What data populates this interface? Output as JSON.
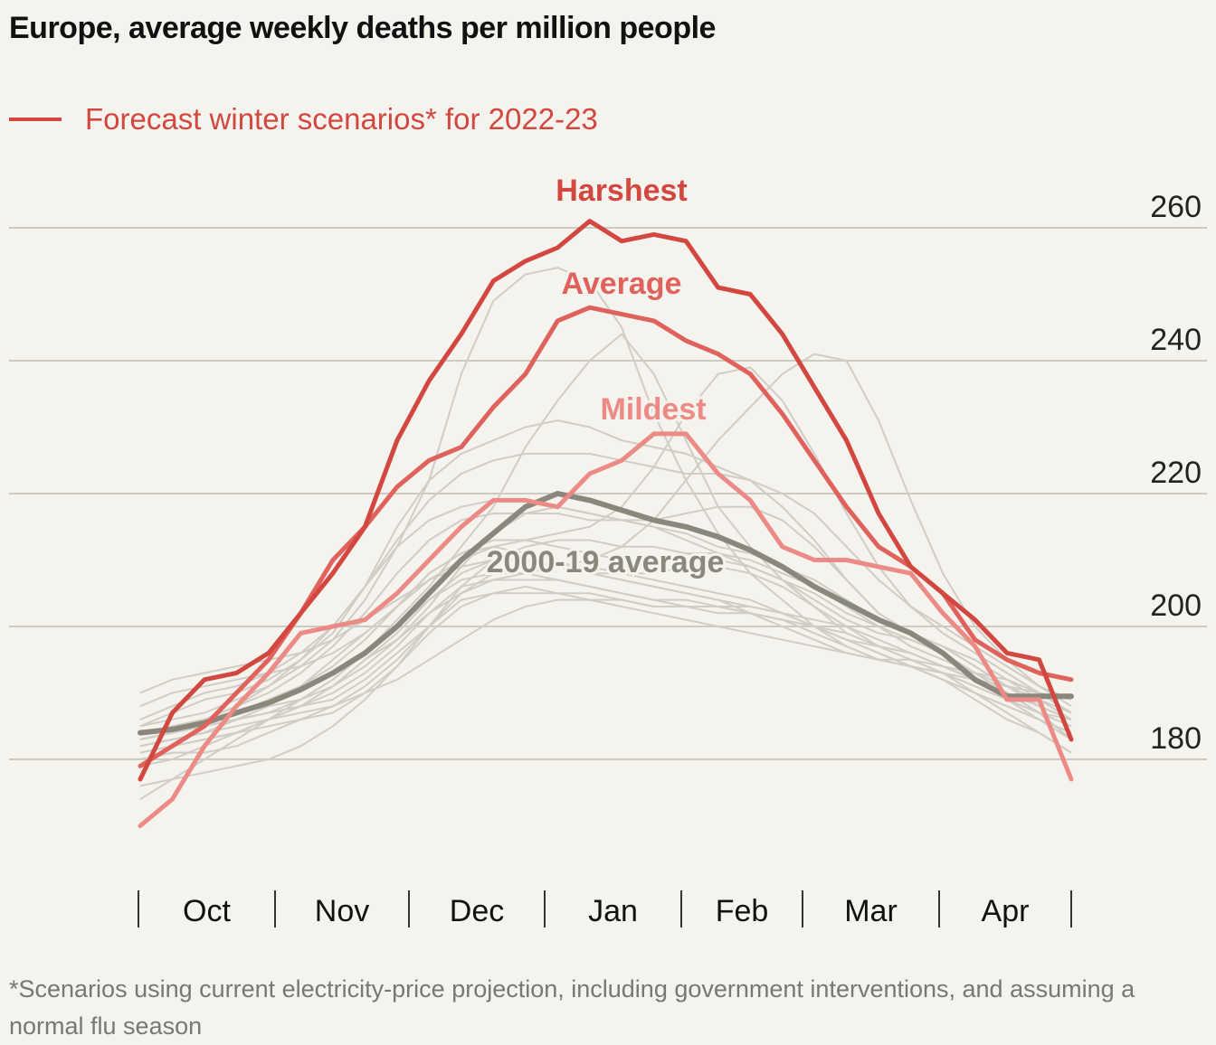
{
  "colors": {
    "background": "#f5f3ee",
    "harshest": "#d2473f",
    "average": "#e0625d",
    "mildest": "#ec8a86",
    "historical_average": "#8b877c",
    "historical_years": "#cfcdc6",
    "gridline": "#cdcbc0",
    "legend_red": "#d2473f"
  },
  "chart_data": {
    "type": "line",
    "title": "Europe, average weekly deaths per million people",
    "legend": [
      {
        "label": "Forecast winter scenarios* for 2022-23",
        "color": "#d2473f",
        "placement": "top-left"
      }
    ],
    "footnote": "*Scenarios using current electricity-price projection, including government interventions, and assuming a normal flu season",
    "x_axis": {
      "labels": [
        "Oct",
        "Nov",
        "Dec",
        "Jan",
        "Feb",
        "Mar",
        "Apr"
      ],
      "weeks": 30,
      "week_start": 0
    },
    "y_axis": {
      "ticks": [
        180,
        200,
        220,
        240,
        260
      ],
      "range": [
        162,
        272
      ],
      "position": "right",
      "grid": true
    },
    "series": [
      {
        "name": "Harshest",
        "label": "Harshest",
        "color": "#d2473f",
        "width": 5,
        "values": [
          177,
          187,
          192,
          193,
          196,
          202,
          208,
          215,
          228,
          237,
          244,
          252,
          255,
          257,
          261,
          258,
          259,
          258,
          251,
          250,
          244,
          236,
          228,
          217,
          209,
          205,
          201,
          196,
          195,
          183
        ]
      },
      {
        "name": "Average",
        "label": "Average",
        "color": "#e0625d",
        "width": 5,
        "values": [
          179,
          182,
          185,
          190,
          195,
          202,
          210,
          215,
          221,
          225,
          227,
          233,
          238,
          246,
          248,
          247,
          246,
          243,
          241,
          238,
          232,
          225,
          218,
          212,
          209,
          205,
          198,
          195,
          193,
          192
        ]
      },
      {
        "name": "Mildest",
        "label": "Mildest",
        "color": "#ec8a86",
        "width": 5,
        "values": [
          170,
          174,
          182,
          188,
          193,
          199,
          200,
          201,
          205,
          210,
          215,
          219,
          219,
          218,
          223,
          225,
          229,
          229,
          223,
          219,
          212,
          210,
          210,
          209,
          208,
          202,
          197,
          189,
          189,
          177
        ]
      },
      {
        "name": "2000-19 average",
        "label": "2000-19 average",
        "color": "#8b877c",
        "width": 6,
        "values": [
          184,
          184.5,
          185.5,
          187,
          188.5,
          190.5,
          193,
          196,
          200,
          205,
          210,
          214,
          218,
          220,
          219,
          217.5,
          216,
          215,
          213.5,
          211.5,
          209,
          206,
          203.5,
          201,
          199,
          196,
          192,
          189.5,
          189.5,
          189.5
        ]
      }
    ],
    "background_years": [
      [
        184,
        185,
        186,
        187,
        188,
        189,
        191,
        195,
        198,
        203,
        209,
        214,
        217,
        218,
        217,
        216,
        215,
        213,
        211,
        209,
        207,
        204,
        201,
        199,
        198,
        196,
        193,
        190,
        187,
        183
      ],
      [
        182,
        183,
        184,
        186,
        187,
        188,
        189,
        192,
        196,
        200,
        205,
        208,
        209,
        209,
        209,
        208,
        207,
        206,
        205,
        204,
        202,
        200,
        198,
        196,
        194,
        192,
        189,
        186,
        184,
        181
      ],
      [
        185,
        187,
        189,
        190,
        192,
        195,
        199,
        206,
        215,
        222,
        226,
        228,
        230,
        231,
        230,
        228,
        227,
        226,
        224,
        222,
        218,
        213,
        207,
        202,
        199,
        197,
        194,
        191,
        188,
        186
      ],
      [
        183,
        184,
        185,
        186,
        187,
        188,
        190,
        193,
        197,
        202,
        206,
        207,
        207,
        207,
        206,
        205,
        204,
        203,
        203,
        202,
        201,
        199,
        197,
        195,
        194,
        192,
        190,
        188,
        186,
        184
      ],
      [
        180,
        181,
        181,
        182,
        184,
        186,
        188,
        191,
        195,
        200,
        204,
        205,
        206,
        205,
        205,
        204,
        203,
        203,
        203,
        202,
        201,
        200,
        198,
        197,
        196,
        194,
        192,
        189,
        186,
        183
      ],
      [
        186,
        188,
        190,
        191,
        193,
        196,
        200,
        206,
        213,
        219,
        223,
        225,
        226,
        226,
        226,
        225,
        224,
        223,
        223,
        222,
        220,
        217,
        212,
        207,
        203,
        200,
        197,
        194,
        191,
        189
      ],
      [
        181,
        182,
        183,
        184,
        185,
        186,
        187,
        190,
        194,
        200,
        206,
        210,
        212,
        213,
        213,
        212,
        212,
        211,
        210,
        209,
        207,
        205,
        202,
        200,
        198,
        196,
        193,
        190,
        187,
        185
      ],
      [
        183,
        184,
        186,
        188,
        191,
        195,
        200,
        206,
        212,
        216,
        218,
        219,
        219,
        218,
        217,
        216,
        215,
        214,
        212,
        211,
        209,
        207,
        204,
        201,
        199,
        197,
        195,
        192,
        189,
        186
      ],
      [
        184,
        185,
        186,
        188,
        190,
        193,
        197,
        202,
        208,
        213,
        216,
        217,
        217,
        217,
        216,
        216,
        216,
        217,
        218,
        218,
        216,
        212,
        207,
        202,
        199,
        197,
        194,
        191,
        188,
        186
      ],
      [
        182,
        183,
        184,
        185,
        186,
        187,
        188,
        190,
        192,
        195,
        198,
        201,
        203,
        204,
        204,
        204,
        203,
        203,
        202,
        202,
        201,
        200,
        199,
        197,
        196,
        194,
        192,
        190,
        188,
        186
      ],
      [
        185,
        186,
        187,
        189,
        191,
        194,
        198,
        204,
        212,
        222,
        238,
        249,
        253,
        254,
        252,
        245,
        232,
        222,
        214,
        208,
        204,
        200,
        197,
        195,
        194,
        193,
        191,
        189,
        187,
        186
      ],
      [
        183,
        184,
        185,
        186,
        187,
        189,
        192,
        196,
        201,
        206,
        212,
        218,
        227,
        234,
        240,
        244,
        238,
        228,
        218,
        212,
        207,
        203,
        199,
        197,
        195,
        193,
        191,
        189,
        187,
        185
      ],
      [
        182,
        183,
        184,
        186,
        188,
        191,
        195,
        199,
        203,
        207,
        210,
        212,
        213,
        214,
        215,
        218,
        224,
        232,
        238,
        239,
        234,
        226,
        217,
        209,
        203,
        199,
        196,
        193,
        190,
        187
      ],
      [
        181,
        182,
        183,
        184,
        186,
        188,
        191,
        194,
        198,
        202,
        205,
        207,
        208,
        209,
        210,
        212,
        216,
        222,
        228,
        233,
        238,
        241,
        240,
        231,
        219,
        208,
        200,
        195,
        191,
        188
      ],
      [
        183,
        184,
        185,
        187,
        189,
        191,
        194,
        198,
        203,
        208,
        211,
        213,
        213,
        212,
        211,
        210,
        210,
        211,
        211,
        210,
        208,
        206,
        203,
        200,
        197,
        195,
        193,
        191,
        189,
        187
      ],
      [
        176,
        177,
        178,
        179,
        180,
        182,
        185,
        189,
        194,
        199,
        203,
        205,
        205,
        205,
        204,
        203,
        202,
        201,
        200,
        199,
        198,
        197,
        196,
        195,
        195,
        194,
        193,
        192,
        190,
        187
      ],
      [
        174,
        177,
        180,
        183,
        186,
        189,
        192,
        196,
        200,
        204,
        207,
        208,
        208,
        207,
        206,
        205,
        204,
        204,
        203,
        203,
        202,
        201,
        200,
        198,
        196,
        194,
        192,
        190,
        188,
        186
      ],
      [
        188,
        190,
        191,
        192,
        193,
        194,
        196,
        199,
        203,
        208,
        211,
        212,
        211,
        210,
        208,
        207,
        206,
        205,
        204,
        203,
        202,
        200,
        198,
        196,
        194,
        192,
        190,
        188,
        186,
        184
      ],
      [
        190,
        192,
        193,
        194,
        195,
        196,
        198,
        201,
        204,
        207,
        209,
        210,
        210,
        209,
        208,
        207,
        206,
        205,
        204,
        202,
        200,
        198,
        196,
        195,
        194,
        193,
        192,
        191,
        190,
        189
      ],
      [
        179,
        180,
        182,
        184,
        186,
        188,
        191,
        195,
        199,
        204,
        208,
        210,
        210,
        209,
        208,
        208,
        208,
        209,
        209,
        208,
        206,
        203,
        200,
        197,
        195,
        193,
        190,
        187,
        184,
        181
      ]
    ],
    "annotations": [
      {
        "text": "Harshest",
        "series": "Harshest"
      },
      {
        "text": "Average",
        "series": "Average"
      },
      {
        "text": "Mildest",
        "series": "Mildest"
      },
      {
        "text": "2000-19 average",
        "series": "2000-19 average"
      }
    ]
  }
}
